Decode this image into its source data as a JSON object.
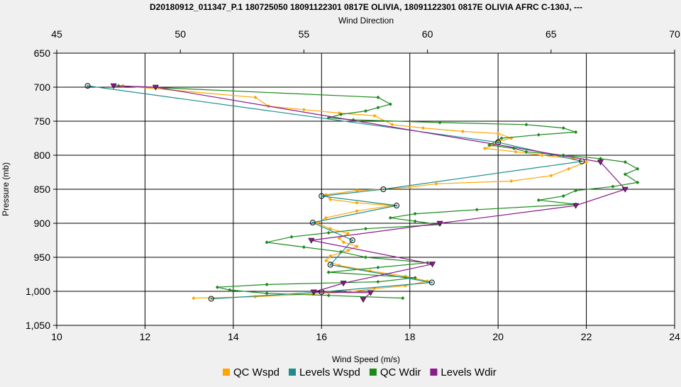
{
  "chart_data": {
    "type": "line",
    "title": "D20180912_011347_P.1 180725050 18091122301 0817E OLIVIA, 18091122301 0817E OLIVIA AFRC C-130J, ---",
    "top_axis_label": "Wind Direction",
    "xlabel": "Wind Speed (m/s)",
    "ylabel": "Pressure (mb)",
    "x_range": [
      10,
      24
    ],
    "top_range": [
      45,
      70
    ],
    "y_range": [
      650,
      1050
    ],
    "y_inverted": true,
    "grid": true,
    "legend_position": "bottom",
    "x_ticks": [
      "10",
      "12",
      "14",
      "16",
      "18",
      "20",
      "22",
      "24"
    ],
    "top_ticks": [
      "45",
      "50",
      "55",
      "60",
      "65",
      "70"
    ],
    "y_ticks": [
      "650",
      "700",
      "750",
      "800",
      "850",
      "900",
      "950",
      "1,000",
      "1,050"
    ],
    "series": [
      {
        "name": "QC Wspd",
        "axis": "bottom",
        "color": "#ffa500",
        "marker": "diamond",
        "points": [
          [
            11.5,
            698
          ],
          [
            14.5,
            715
          ],
          [
            14.8,
            728
          ],
          [
            15.6,
            733
          ],
          [
            16.4,
            738
          ],
          [
            17.2,
            742
          ],
          [
            17.6,
            755
          ],
          [
            18.3,
            760
          ],
          [
            19.2,
            765
          ],
          [
            20.0,
            768
          ],
          [
            20.3,
            775
          ],
          [
            20.0,
            780
          ],
          [
            19.9,
            785
          ],
          [
            19.7,
            790
          ],
          [
            20.4,
            795
          ],
          [
            21.0,
            800
          ],
          [
            21.7,
            805
          ],
          [
            22.0,
            810
          ],
          [
            21.6,
            820
          ],
          [
            21.2,
            830
          ],
          [
            20.3,
            838
          ],
          [
            18.6,
            842
          ],
          [
            18.0,
            847
          ],
          [
            16.8,
            852
          ],
          [
            16.1,
            858
          ],
          [
            16.2,
            865
          ],
          [
            16.8,
            870
          ],
          [
            17.6,
            874
          ],
          [
            16.8,
            882
          ],
          [
            16.1,
            892
          ],
          [
            15.9,
            900
          ],
          [
            16.2,
            908
          ],
          [
            16.6,
            915
          ],
          [
            16.4,
            922
          ],
          [
            16.5,
            928
          ],
          [
            16.8,
            934
          ],
          [
            16.6,
            940
          ],
          [
            16.2,
            948
          ],
          [
            16.1,
            955
          ],
          [
            16.4,
            962
          ],
          [
            17.1,
            970
          ],
          [
            17.9,
            978
          ],
          [
            18.4,
            985
          ],
          [
            17.9,
            992
          ],
          [
            17.2,
            996
          ],
          [
            16.6,
            1001
          ],
          [
            15.8,
            1004
          ],
          [
            14.5,
            1008
          ],
          [
            13.1,
            1010
          ]
        ]
      },
      {
        "name": "Levels Wspd",
        "axis": "bottom",
        "color": "#1e8c8c",
        "marker": "circle",
        "points": [
          [
            10.7,
            698
          ],
          [
            20.0,
            781
          ],
          [
            21.9,
            809
          ],
          [
            17.4,
            850
          ],
          [
            16.0,
            860
          ],
          [
            17.7,
            874
          ],
          [
            15.8,
            899
          ],
          [
            16.7,
            925
          ],
          [
            16.2,
            961
          ],
          [
            18.5,
            987
          ],
          [
            16.0,
            1001
          ],
          [
            13.5,
            1011
          ]
        ]
      },
      {
        "name": "QC Wdir",
        "axis": "top",
        "color": "#1b8a1b",
        "marker": "diamond",
        "points": [
          [
            47.5,
            698
          ],
          [
            58.0,
            715
          ],
          [
            58.5,
            725
          ],
          [
            58.0,
            730
          ],
          [
            57.5,
            735
          ],
          [
            56.5,
            740
          ],
          [
            56.0,
            745
          ],
          [
            57.0,
            748
          ],
          [
            60.5,
            752
          ],
          [
            64.0,
            755
          ],
          [
            65.5,
            760
          ],
          [
            66.0,
            766
          ],
          [
            64.5,
            770
          ],
          [
            63.0,
            775
          ],
          [
            62.5,
            785
          ],
          [
            63.5,
            790
          ],
          [
            64.0,
            795
          ],
          [
            65.5,
            800
          ],
          [
            67.0,
            805
          ],
          [
            68.0,
            810
          ],
          [
            68.5,
            820
          ],
          [
            68.0,
            828
          ],
          [
            68.5,
            840
          ],
          [
            67.5,
            846
          ],
          [
            66.0,
            852
          ],
          [
            65.5,
            860
          ],
          [
            64.5,
            866
          ],
          [
            66.0,
            872
          ],
          [
            62.0,
            880
          ],
          [
            59.5,
            886
          ],
          [
            58.5,
            892
          ],
          [
            59.5,
            897
          ],
          [
            60.5,
            902
          ],
          [
            57.5,
            908
          ],
          [
            56.0,
            914
          ],
          [
            54.5,
            920
          ],
          [
            53.5,
            928
          ],
          [
            55.0,
            935
          ],
          [
            56.5,
            942
          ],
          [
            57.5,
            950
          ],
          [
            60.0,
            958
          ],
          [
            58.0,
            965
          ],
          [
            56.0,
            972
          ],
          [
            59.5,
            980
          ],
          [
            58.0,
            986
          ],
          [
            53.5,
            990
          ],
          [
            51.5,
            994
          ],
          [
            52.0,
            998
          ],
          [
            53.5,
            1003
          ],
          [
            56.0,
            1006
          ],
          [
            59.0,
            1010
          ]
        ]
      },
      {
        "name": "Levels Wdir",
        "axis": "top",
        "color": "#8b1a8b",
        "marker": "triangle",
        "points": [
          [
            47.3,
            698
          ],
          [
            49.0,
            700
          ],
          [
            67.0,
            810
          ],
          [
            68.0,
            850
          ],
          [
            66.0,
            874
          ],
          [
            60.5,
            900
          ],
          [
            55.3,
            925
          ],
          [
            60.2,
            960
          ],
          [
            56.6,
            988
          ],
          [
            55.4,
            1001
          ],
          [
            57.7,
            1002
          ],
          [
            57.4,
            1012
          ]
        ]
      }
    ]
  }
}
